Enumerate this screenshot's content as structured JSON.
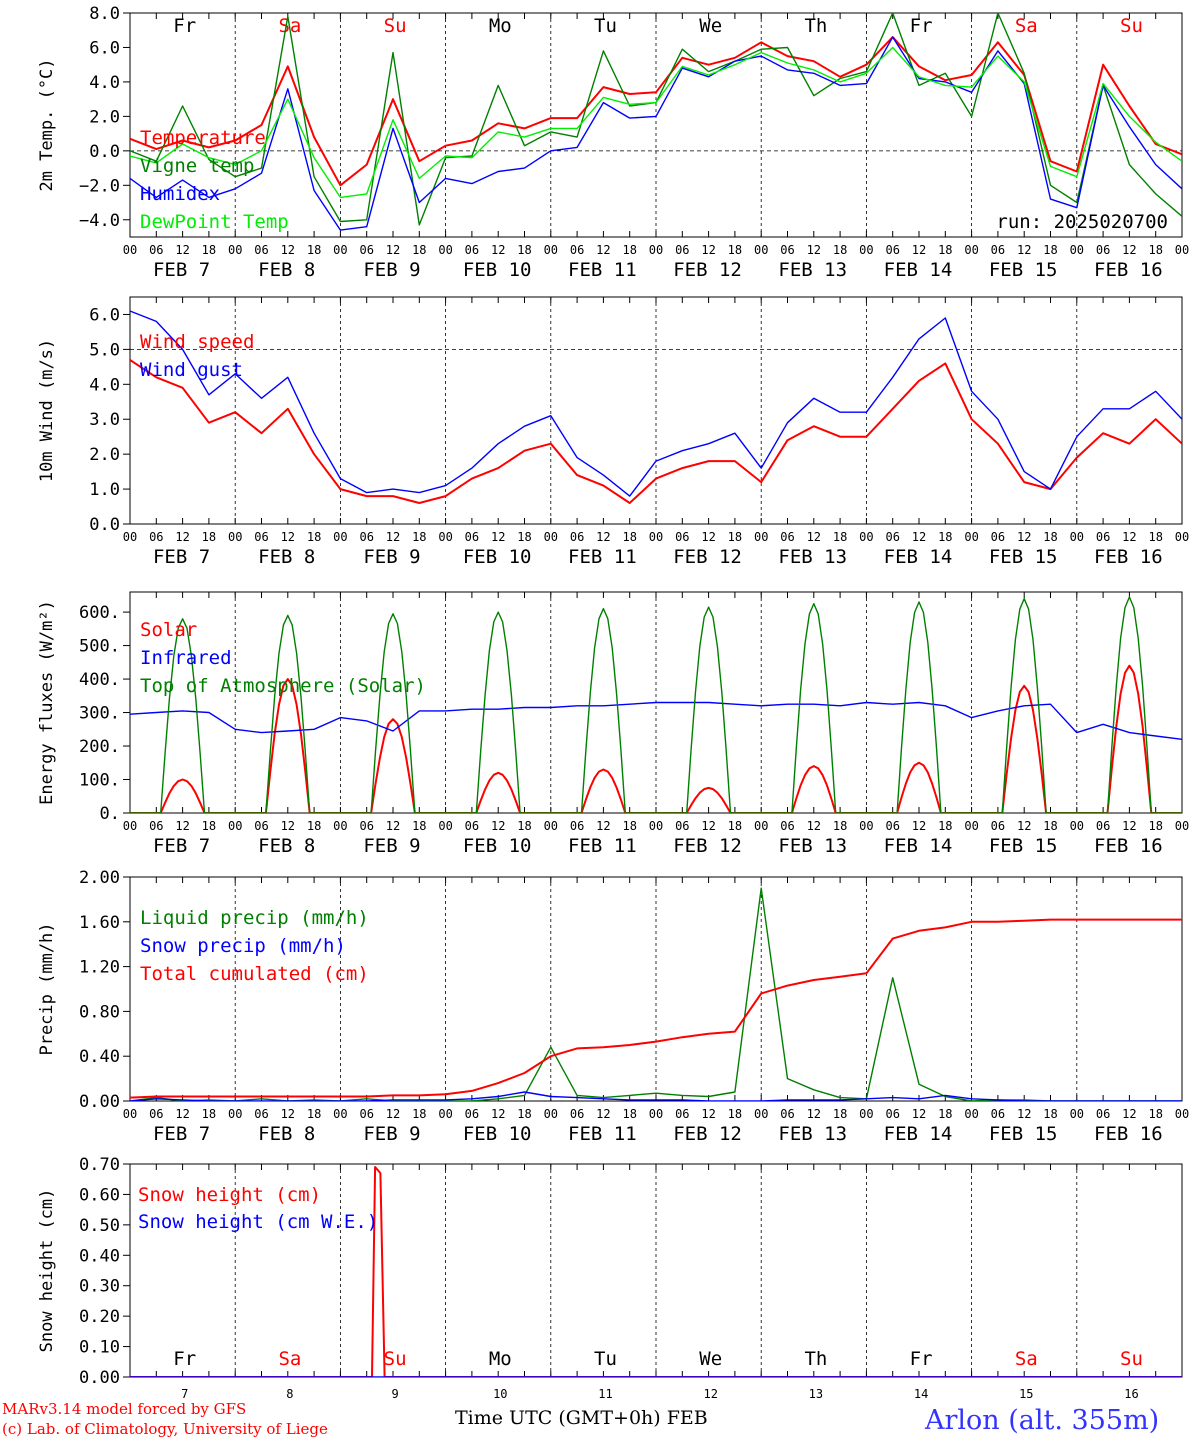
{
  "days": [
    "Fr",
    "Sa",
    "Su",
    "Mo",
    "Tu",
    "We",
    "Th",
    "Fr",
    "Sa",
    "Su"
  ],
  "weekend_days": [
    1,
    2,
    8,
    9
  ],
  "dates": [
    "FEB  7",
    "FEB  8",
    "FEB  9",
    "FEB 10",
    "FEB 11",
    "FEB 12",
    "FEB 13",
    "FEB 14",
    "FEB 15",
    "FEB 16"
  ],
  "date_numbers": [
    "7",
    "8",
    "9",
    "10",
    "11",
    "12",
    "13",
    "14",
    "15",
    "16"
  ],
  "hour_ticks": [
    "00",
    "06",
    "12",
    "18"
  ],
  "footer": {
    "model": "MARv3.14 model forced by GFS",
    "credit": "(c) Lab. of Climatology, University of Liege",
    "xlabel": "Time UTC (GMT+0h) FEB",
    "station": "Arlon (alt. 355m)"
  },
  "colors": {
    "red": "#ff0000",
    "green": "#008000",
    "blue": "#0000ff",
    "lightgreen": "#00ee00"
  },
  "chart_data": [
    {
      "type": "line",
      "ylabel": "2m Temp. (°C)",
      "ylim": [
        -5,
        8
      ],
      "yticks": [
        "8.0",
        "6.0",
        "4.0",
        "2.0",
        "0.0",
        "−2.0",
        "−4.0"
      ],
      "run_label": "run: 2025020700",
      "zero_line": 0,
      "x_days": [
        0,
        0.25,
        0.5,
        0.75,
        1,
        1.25,
        1.5,
        1.75,
        2,
        2.25,
        2.5,
        2.75,
        3,
        3.25,
        3.5,
        3.75,
        4,
        4.25,
        4.5,
        4.75,
        5,
        5.25,
        5.5,
        5.75,
        6,
        6.25,
        6.5,
        6.75,
        7,
        7.25,
        7.5,
        7.75,
        8,
        8.25,
        8.5,
        8.75,
        9,
        9.25,
        9.5,
        9.75,
        10
      ],
      "series": [
        {
          "name": "Temperature",
          "color": "#ff0000",
          "values": [
            0.7,
            0.1,
            0.6,
            0.2,
            0.6,
            1.5,
            4.9,
            0.8,
            -2.0,
            -0.8,
            3.0,
            -0.6,
            0.3,
            0.6,
            1.6,
            1.3,
            1.9,
            1.9,
            3.7,
            3.3,
            3.4,
            5.4,
            5.0,
            5.4,
            6.3,
            5.5,
            5.2,
            4.3,
            5.0,
            6.6,
            4.9,
            4.1,
            4.4,
            6.3,
            4.4,
            -0.6,
            -1.2,
            5.0,
            2.6,
            0.4,
            -0.2
          ]
        },
        {
          "name": "Vigne temp",
          "color": "#008000",
          "values": [
            0.0,
            -0.6,
            2.6,
            -0.5,
            -1.5,
            -1.0,
            7.8,
            -1.5,
            -4.1,
            -4.0,
            5.7,
            -4.3,
            -0.4,
            -0.3,
            3.8,
            0.3,
            1.1,
            0.8,
            5.8,
            2.6,
            2.8,
            5.9,
            4.6,
            5.2,
            5.9,
            6.0,
            3.2,
            4.2,
            4.6,
            8.0,
            3.8,
            4.5,
            2.0,
            8.0,
            4.5,
            -2.0,
            -3.0,
            3.8,
            -0.8,
            -2.5,
            -3.8
          ]
        },
        {
          "name": "Humidex",
          "color": "#0000ff",
          "values": [
            -1.6,
            -2.7,
            -1.7,
            -2.7,
            -2.2,
            -1.3,
            3.6,
            -2.3,
            -4.6,
            -4.4,
            1.3,
            -3.0,
            -1.6,
            -1.9,
            -1.2,
            -1.0,
            0.0,
            0.2,
            2.8,
            1.9,
            2.0,
            4.8,
            4.3,
            5.2,
            5.5,
            4.7,
            4.5,
            3.8,
            3.9,
            6.6,
            4.2,
            4.0,
            3.4,
            5.8,
            3.9,
            -2.8,
            -3.3,
            3.8,
            1.4,
            -0.8,
            -2.2
          ]
        },
        {
          "name": "DewPoint Temp",
          "color": "#00ee00",
          "values": [
            -0.3,
            -0.7,
            0.4,
            -0.4,
            -0.8,
            0.0,
            3.0,
            -0.4,
            -2.7,
            -2.5,
            1.8,
            -1.6,
            -0.3,
            -0.4,
            1.1,
            0.8,
            1.3,
            1.3,
            3.1,
            2.7,
            2.8,
            4.9,
            4.4,
            5.0,
            5.7,
            5.1,
            4.7,
            4.0,
            4.5,
            6.0,
            4.3,
            3.8,
            3.7,
            5.5,
            4.0,
            -0.9,
            -1.5,
            3.9,
            2.0,
            0.5,
            -0.6
          ]
        }
      ]
    },
    {
      "type": "line",
      "ylabel": "10m Wind (m/s)",
      "ylim": [
        0,
        6.5
      ],
      "yticks": [
        "0.0",
        "1.0",
        "2.0",
        "3.0",
        "4.0",
        "5.0",
        "6.0"
      ],
      "ref_line": 5.0,
      "x_days": [
        0,
        0.25,
        0.5,
        0.75,
        1,
        1.25,
        1.5,
        1.75,
        2,
        2.25,
        2.5,
        2.75,
        3,
        3.25,
        3.5,
        3.75,
        4,
        4.25,
        4.5,
        4.75,
        5,
        5.25,
        5.5,
        5.75,
        6,
        6.25,
        6.5,
        6.75,
        7,
        7.25,
        7.5,
        7.75,
        8,
        8.25,
        8.5,
        8.75,
        9,
        9.25,
        9.5,
        9.75,
        10
      ],
      "series": [
        {
          "name": "Wind speed",
          "color": "#ff0000",
          "values": [
            4.7,
            4.2,
            3.9,
            2.9,
            3.2,
            2.6,
            3.3,
            2.0,
            1.0,
            0.8,
            0.8,
            0.6,
            0.8,
            1.3,
            1.6,
            2.1,
            2.3,
            1.4,
            1.1,
            0.6,
            1.3,
            1.6,
            1.8,
            1.8,
            1.2,
            2.4,
            2.8,
            2.5,
            2.5,
            3.3,
            4.1,
            4.6,
            3.0,
            2.3,
            1.2,
            1.0,
            1.9,
            2.6,
            2.3,
            3.0,
            2.3
          ]
        },
        {
          "name": "Wind gust",
          "color": "#0000ff",
          "values": [
            6.1,
            5.8,
            5.0,
            3.7,
            4.3,
            3.6,
            4.2,
            2.6,
            1.3,
            0.9,
            1.0,
            0.9,
            1.1,
            1.6,
            2.3,
            2.8,
            3.1,
            1.9,
            1.4,
            0.8,
            1.8,
            2.1,
            2.3,
            2.6,
            1.6,
            2.9,
            3.6,
            3.2,
            3.2,
            4.2,
            5.3,
            5.9,
            3.8,
            3.0,
            1.5,
            1.0,
            2.5,
            3.3,
            3.3,
            3.8,
            3.0
          ]
        }
      ]
    },
    {
      "type": "line",
      "ylabel": "Energy fluxes (W/m²)",
      "ylim": [
        0,
        660
      ],
      "yticks": [
        "0.",
        "100.",
        "200.",
        "300.",
        "400.",
        "500.",
        "600."
      ],
      "series": [
        {
          "name": "Solar",
          "color": "#ff0000",
          "daily_peaks": [
            100,
            400,
            280,
            120,
            130,
            75,
            140,
            150,
            380,
            440
          ]
        },
        {
          "name": "Infrared",
          "color": "#0000ff",
          "values": [
            295,
            300,
            305,
            300,
            250,
            240,
            245,
            250,
            285,
            275,
            245,
            305,
            305,
            310,
            310,
            315,
            315,
            320,
            320,
            325,
            330,
            330,
            330,
            325,
            320,
            325,
            325,
            320,
            330,
            325,
            330,
            320,
            285,
            305,
            320,
            325,
            240,
            265,
            240,
            230,
            220
          ]
        },
        {
          "name": "Top of Atmosphere (Solar)",
          "color": "#008000",
          "daily_peaks": [
            580,
            590,
            595,
            600,
            610,
            615,
            625,
            630,
            640,
            645
          ]
        }
      ]
    },
    {
      "type": "line",
      "ylabel": "Precip (mm/h)",
      "ylim": [
        0,
        2.0
      ],
      "yticks": [
        "0.00",
        "0.40",
        "0.80",
        "1.20",
        "1.60",
        "2.00"
      ],
      "x_days": [
        0,
        0.25,
        0.5,
        0.75,
        1,
        1.25,
        1.5,
        1.75,
        2,
        2.25,
        2.5,
        2.75,
        3,
        3.25,
        3.5,
        3.75,
        4,
        4.25,
        4.5,
        4.75,
        5,
        5.25,
        5.5,
        5.75,
        6,
        6.25,
        6.5,
        6.75,
        7,
        7.25,
        7.5,
        7.75,
        8,
        8.25,
        8.5,
        8.75,
        9,
        9.25,
        9.5,
        9.75,
        10
      ],
      "series": [
        {
          "name": "Liquid precip (mm/h)",
          "color": "#008000",
          "values": [
            0,
            0.03,
            0,
            0.01,
            0,
            0.02,
            0,
            0.01,
            0,
            0.02,
            0,
            0,
            0,
            0,
            0.02,
            0.05,
            0.48,
            0.05,
            0.03,
            0.05,
            0.07,
            0.05,
            0.04,
            0.08,
            1.9,
            0.2,
            0.1,
            0.03,
            0.02,
            1.1,
            0.15,
            0.04,
            0,
            0.01,
            0.01,
            0,
            0,
            0,
            0,
            0,
            0
          ]
        },
        {
          "name": "Snow precip (mm/h)",
          "color": "#0000ff",
          "values": [
            0,
            0.02,
            0.01,
            0,
            0,
            0,
            0,
            0,
            0,
            0,
            0.01,
            0.01,
            0.01,
            0.02,
            0.04,
            0.08,
            0.04,
            0.03,
            0.02,
            0.01,
            0.01,
            0.01,
            0,
            0,
            0,
            0.01,
            0.01,
            0.01,
            0.02,
            0.03,
            0.02,
            0.05,
            0.02,
            0.01,
            0,
            0,
            0,
            0,
            0,
            0,
            0
          ]
        },
        {
          "name": "Total cumulated (cm)",
          "color": "#ff0000",
          "values": [
            0.03,
            0.04,
            0.04,
            0.04,
            0.04,
            0.04,
            0.04,
            0.04,
            0.04,
            0.04,
            0.05,
            0.05,
            0.06,
            0.09,
            0.16,
            0.25,
            0.4,
            0.47,
            0.48,
            0.5,
            0.53,
            0.57,
            0.6,
            0.62,
            0.96,
            1.03,
            1.08,
            1.11,
            1.14,
            1.45,
            1.52,
            1.55,
            1.6,
            1.6,
            1.61,
            1.62,
            1.62,
            1.62,
            1.62,
            1.62,
            1.62
          ]
        }
      ]
    },
    {
      "type": "line",
      "ylabel": "Snow height (cm)",
      "ylim": [
        0,
        0.7
      ],
      "yticks": [
        "0.00",
        "0.10",
        "0.20",
        "0.30",
        "0.40",
        "0.50",
        "0.60",
        "0.70"
      ],
      "series": [
        {
          "name": "Snow height (cm)",
          "color": "#ff0000",
          "x_days": [
            0,
            2.3,
            2.33,
            2.38,
            2.42,
            10
          ],
          "values": [
            0,
            0,
            0.69,
            0.67,
            0,
            0
          ]
        },
        {
          "name": "Snow height (cm W.E.)",
          "color": "#0000ff",
          "x_days": [
            0,
            10
          ],
          "values": [
            0,
            0
          ]
        }
      ]
    }
  ]
}
